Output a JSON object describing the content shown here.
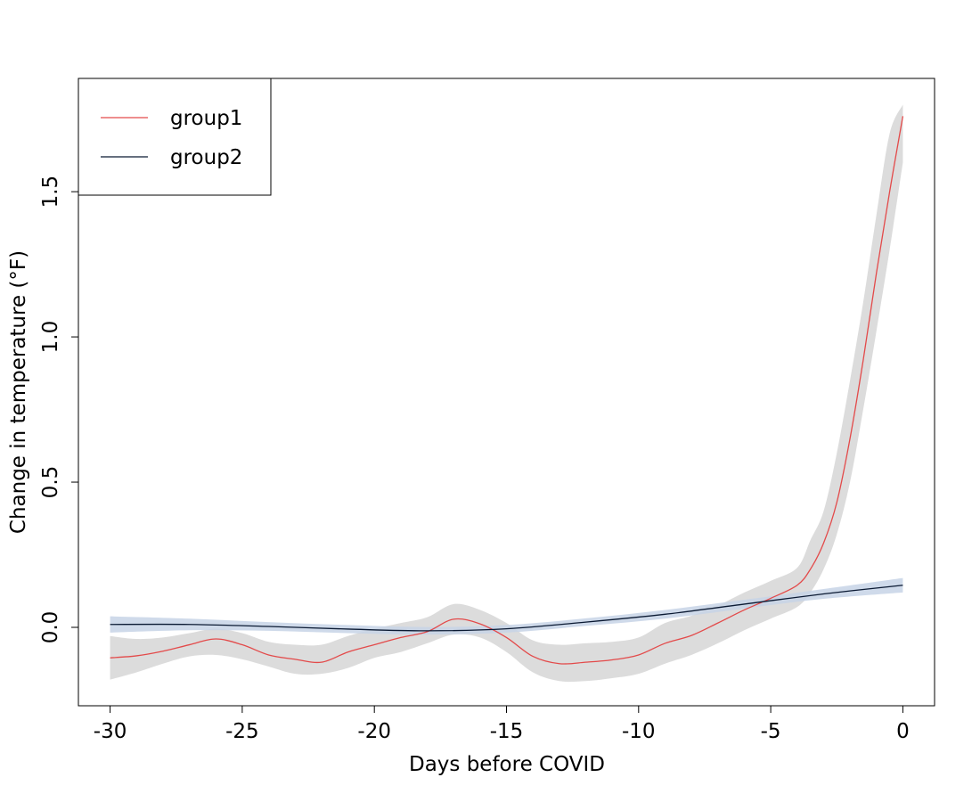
{
  "chart_data": {
    "type": "line",
    "title": "",
    "xlabel": "Days before COVID",
    "ylabel": "Change in temperature (°F)",
    "xlim": [
      -31.2,
      1.2
    ],
    "ylim": [
      -0.27,
      1.89
    ],
    "xticks": [
      -30,
      -25,
      -20,
      -15,
      -10,
      -5,
      0
    ],
    "xtick_labels": [
      "-30",
      "-25",
      "-20",
      "-15",
      "-10",
      "-5",
      "0"
    ],
    "yticks": [
      0.0,
      0.5,
      1.0,
      1.5
    ],
    "ytick_labels": [
      "0.0",
      "0.5",
      "1.0",
      "1.5"
    ],
    "grid": false,
    "legend_position": "top-left",
    "band_colors": {
      "group1": "#dcdcdc",
      "group2": "#c7d3e6"
    },
    "series": [
      {
        "name": "group1",
        "color": "#e34a4a",
        "x": [
          -30,
          -29,
          -28,
          -27,
          -26,
          -25,
          -24,
          -23,
          -22,
          -21,
          -20,
          -19,
          -18,
          -17,
          -16,
          -15,
          -14,
          -13,
          -12,
          -11,
          -10,
          -9,
          -8,
          -7,
          -6,
          -5,
          -4,
          -3.5,
          -3,
          -2.5,
          -2,
          -1.5,
          -1,
          -0.5,
          0
        ],
        "y": [
          -0.105,
          -0.098,
          -0.082,
          -0.06,
          -0.04,
          -0.06,
          -0.095,
          -0.11,
          -0.12,
          -0.085,
          -0.06,
          -0.035,
          -0.015,
          0.028,
          0.012,
          -0.035,
          -0.1,
          -0.125,
          -0.12,
          -0.112,
          -0.095,
          -0.055,
          -0.028,
          0.015,
          0.06,
          0.1,
          0.145,
          0.2,
          0.29,
          0.43,
          0.65,
          0.92,
          1.22,
          1.5,
          1.76
        ],
        "lower": [
          -0.18,
          -0.155,
          -0.125,
          -0.1,
          -0.095,
          -0.11,
          -0.135,
          -0.16,
          -0.16,
          -0.14,
          -0.105,
          -0.085,
          -0.055,
          -0.025,
          -0.035,
          -0.085,
          -0.155,
          -0.185,
          -0.185,
          -0.175,
          -0.16,
          -0.125,
          -0.095,
          -0.055,
          -0.01,
          0.03,
          0.07,
          0.12,
          0.2,
          0.32,
          0.5,
          0.75,
          1.02,
          1.3,
          1.6
        ],
        "upper": [
          -0.03,
          -0.04,
          -0.035,
          -0.02,
          -0.005,
          -0.02,
          -0.05,
          -0.06,
          -0.06,
          -0.03,
          -0.005,
          0.015,
          0.035,
          0.08,
          0.06,
          0.015,
          -0.045,
          -0.06,
          -0.055,
          -0.05,
          -0.035,
          0.015,
          0.04,
          0.075,
          0.12,
          0.16,
          0.205,
          0.3,
          0.4,
          0.6,
          0.85,
          1.12,
          1.42,
          1.7,
          1.8
        ]
      },
      {
        "name": "group2",
        "color": "#0b1a33",
        "x": [
          -30,
          -27,
          -24,
          -21,
          -18,
          -15,
          -12,
          -9,
          -6,
          -3,
          0
        ],
        "y": [
          0.01,
          0.01,
          0.003,
          -0.006,
          -0.012,
          -0.005,
          0.018,
          0.045,
          0.08,
          0.115,
          0.145
        ],
        "lower": [
          -0.018,
          -0.01,
          -0.012,
          -0.02,
          -0.025,
          -0.018,
          0.005,
          0.03,
          0.065,
          0.098,
          0.12
        ],
        "upper": [
          0.038,
          0.03,
          0.018,
          0.008,
          0.001,
          0.008,
          0.031,
          0.06,
          0.095,
          0.132,
          0.17
        ]
      }
    ]
  }
}
